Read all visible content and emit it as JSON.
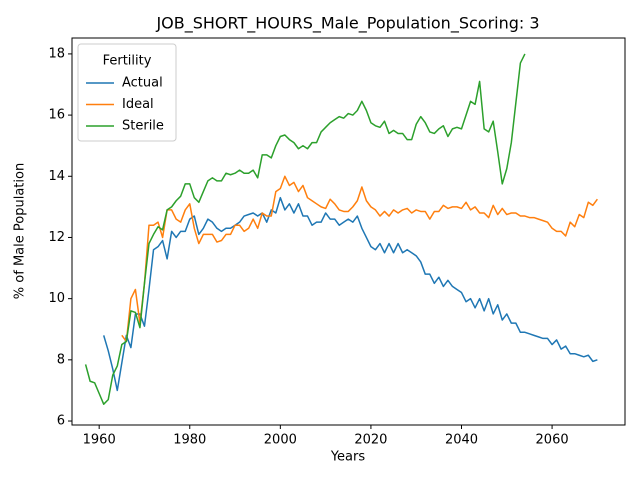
{
  "chart_data": {
    "type": "line",
    "title": "JOB_SHORT_HOURS_Male_Population_Scoring: 3",
    "xlabel": "Years",
    "ylabel": "% of Male Population",
    "legend_title": "Fertility",
    "legend": "upper left",
    "grid": false,
    "x": [
      1957,
      1958,
      1959,
      1960,
      1961,
      1962,
      1963,
      1964,
      1965,
      1966,
      1967,
      1968,
      1969,
      1970,
      1971,
      1972,
      1973,
      1974,
      1975,
      1976,
      1977,
      1978,
      1979,
      1980,
      1981,
      1982,
      1983,
      1984,
      1985,
      1986,
      1987,
      1988,
      1989,
      1990,
      1991,
      1992,
      1993,
      1994,
      1995,
      1996,
      1997,
      1998,
      1999,
      2000,
      2001,
      2002,
      2003,
      2004,
      2005,
      2006,
      2007,
      2008,
      2009,
      2010,
      2011,
      2012,
      2013,
      2014,
      2015,
      2016,
      2017,
      2018,
      2019,
      2020,
      2021,
      2022,
      2023,
      2024,
      2025,
      2026,
      2027,
      2028,
      2029,
      2030,
      2031,
      2032,
      2033,
      2034,
      2035,
      2036,
      2037,
      2038,
      2039,
      2040,
      2041,
      2042,
      2043,
      2044,
      2045,
      2046,
      2047,
      2048,
      2049,
      2050,
      2051,
      2052,
      2053,
      2054,
      2055,
      2056,
      2057,
      2058,
      2059,
      2060,
      2061,
      2062,
      2063,
      2064,
      2065,
      2066,
      2067,
      2068,
      2069,
      2070
    ],
    "xlim": [
      1954.0,
      2076.1
    ],
    "xticks": [
      1960,
      1980,
      2000,
      2020,
      2040,
      2060
    ],
    "ylim": [
      5.87,
      18.52
    ],
    "yticks": [
      6,
      8,
      10,
      12,
      14,
      16,
      18
    ],
    "series": [
      {
        "name": "Actual",
        "color": "#1f77b4",
        "values": [
          null,
          null,
          null,
          null,
          8.8,
          8.3,
          7.7,
          7.0,
          7.9,
          8.8,
          8.4,
          9.5,
          9.5,
          9.1,
          10.3,
          11.6,
          11.7,
          11.9,
          11.3,
          12.2,
          12.0,
          12.2,
          12.2,
          12.6,
          12.7,
          12.1,
          12.3,
          12.6,
          12.5,
          12.3,
          12.2,
          12.3,
          12.3,
          12.4,
          12.5,
          12.7,
          12.75,
          12.8,
          12.7,
          12.8,
          12.5,
          12.9,
          12.8,
          13.3,
          12.9,
          13.1,
          12.8,
          13.1,
          12.7,
          12.7,
          12.4,
          12.5,
          12.5,
          12.8,
          12.6,
          12.6,
          12.4,
          12.5,
          12.6,
          12.5,
          12.7,
          12.3,
          12.0,
          11.7,
          11.6,
          11.8,
          11.5,
          11.8,
          11.5,
          11.8,
          11.5,
          11.6,
          11.5,
          11.4,
          11.2,
          10.8,
          10.8,
          10.5,
          10.7,
          10.4,
          10.6,
          10.4,
          10.3,
          10.2,
          9.9,
          10.0,
          9.7,
          10.0,
          9.6,
          10.0,
          9.5,
          9.8,
          9.3,
          9.5,
          9.2,
          9.2,
          8.9,
          8.9,
          8.85,
          8.8,
          8.75,
          8.7,
          8.7,
          8.5,
          8.65,
          8.35,
          8.45,
          8.2,
          8.2,
          8.15,
          8.1,
          8.15,
          7.95,
          8.0
        ]
      },
      {
        "name": "Ideal",
        "color": "#ff7f0e",
        "values": [
          null,
          null,
          null,
          null,
          null,
          null,
          null,
          null,
          8.8,
          8.6,
          10.0,
          10.3,
          9.2,
          10.5,
          12.4,
          12.4,
          12.5,
          12.0,
          12.9,
          12.9,
          12.6,
          12.5,
          12.9,
          13.1,
          12.3,
          11.8,
          12.1,
          12.1,
          12.1,
          11.85,
          11.9,
          12.1,
          12.1,
          12.4,
          12.4,
          12.2,
          12.3,
          12.6,
          12.3,
          12.8,
          12.7,
          12.7,
          13.5,
          13.6,
          14.0,
          13.7,
          13.8,
          13.5,
          13.7,
          13.3,
          13.2,
          13.1,
          13.0,
          12.95,
          13.25,
          13.1,
          12.9,
          12.85,
          12.85,
          13.0,
          13.2,
          13.65,
          13.2,
          13.0,
          12.9,
          12.7,
          12.85,
          12.7,
          12.9,
          12.8,
          12.9,
          12.95,
          12.8,
          12.9,
          12.85,
          12.85,
          12.6,
          12.85,
          12.85,
          13.05,
          12.95,
          13.0,
          13.0,
          12.95,
          13.15,
          12.9,
          13.0,
          12.8,
          12.8,
          12.65,
          13.05,
          12.75,
          12.95,
          12.75,
          12.8,
          12.8,
          12.7,
          12.7,
          12.65,
          12.65,
          12.6,
          12.55,
          12.5,
          12.3,
          12.2,
          12.2,
          12.05,
          12.5,
          12.35,
          12.75,
          12.65,
          13.15,
          13.05,
          13.25
        ]
      },
      {
        "name": "Sterile",
        "color": "#2ca02c",
        "values": [
          7.85,
          7.3,
          7.25,
          6.9,
          6.55,
          6.7,
          7.5,
          7.8,
          8.5,
          8.6,
          9.6,
          9.55,
          9.05,
          10.5,
          11.8,
          12.1,
          12.35,
          12.25,
          12.9,
          13.0,
          13.2,
          13.35,
          13.75,
          13.75,
          13.3,
          13.15,
          13.5,
          13.85,
          13.95,
          13.85,
          13.85,
          14.1,
          14.05,
          14.1,
          14.2,
          14.1,
          14.1,
          14.2,
          13.95,
          14.7,
          14.7,
          14.6,
          15.0,
          15.3,
          15.35,
          15.2,
          15.1,
          14.9,
          15.0,
          14.9,
          15.1,
          15.1,
          15.45,
          15.6,
          15.75,
          15.85,
          15.95,
          15.9,
          16.05,
          16.0,
          16.15,
          16.45,
          16.15,
          15.75,
          15.65,
          15.6,
          15.8,
          15.4,
          15.5,
          15.4,
          15.4,
          15.2,
          15.2,
          15.7,
          15.95,
          15.75,
          15.45,
          15.4,
          15.55,
          15.65,
          15.3,
          15.55,
          15.6,
          15.55,
          16.0,
          16.45,
          16.35,
          17.1,
          15.55,
          15.45,
          15.8,
          14.8,
          13.75,
          14.25,
          15.1,
          16.4,
          17.7,
          18.0,
          null,
          null,
          null,
          null,
          null,
          null,
          null,
          null,
          null,
          null,
          null,
          null,
          null,
          null,
          null,
          null
        ]
      }
    ]
  }
}
